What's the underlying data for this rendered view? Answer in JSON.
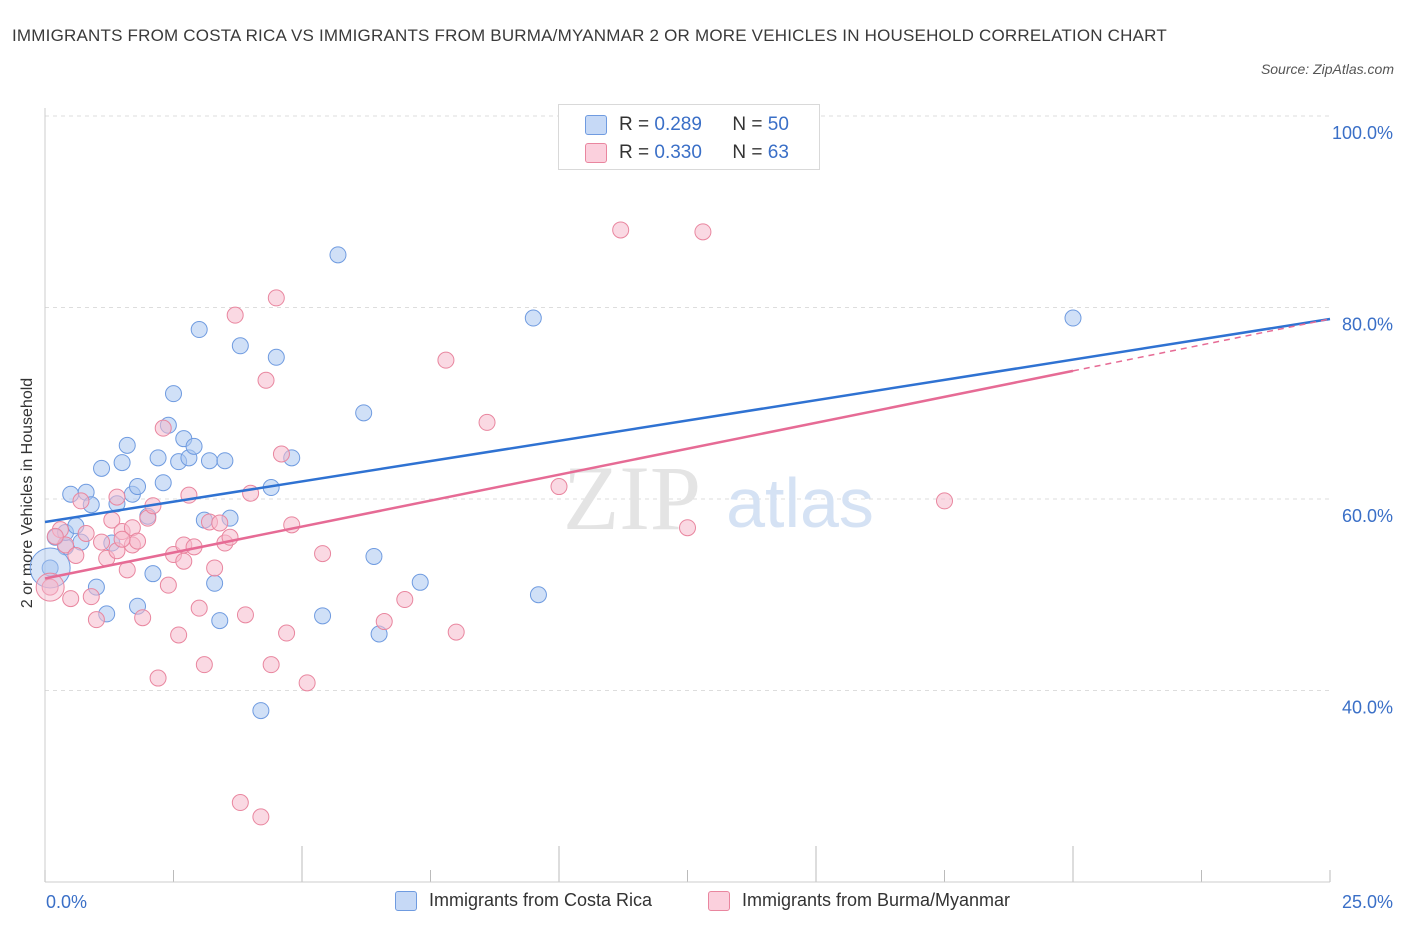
{
  "title": "IMMIGRANTS FROM COSTA RICA VS IMMIGRANTS FROM BURMA/MYANMAR 2 OR MORE VEHICLES IN HOUSEHOLD CORRELATION CHART",
  "source": "Source: ZipAtlas.com",
  "watermark": {
    "zip": "ZIP",
    "atlas": "atlas"
  },
  "legend_top": {
    "series1": {
      "r_label": "R =",
      "r_value": "0.289",
      "n_label": "N =",
      "n_value": "50"
    },
    "series2": {
      "r_label": "R =",
      "r_value": "0.330",
      "n_label": "N =",
      "n_value": "63"
    }
  },
  "colors": {
    "blue_fill": "#a9c6f0",
    "blue_stroke": "#6f9be0",
    "blue_line": "#2f72d2",
    "pink_fill": "#f6b9cc",
    "pink_stroke": "#e9869f",
    "pink_line": "#e66b95",
    "grid": "#dddddd",
    "tick_text": "#3a6fc7"
  },
  "chart_data": {
    "type": "scatter",
    "title": "IMMIGRANTS FROM COSTA RICA VS IMMIGRANTS FROM BURMA/MYANMAR 2 OR MORE VEHICLES IN HOUSEHOLD CORRELATION CHART",
    "xlabel": "",
    "ylabel": "2 or more Vehicles in Household",
    "xlim": [
      0,
      25
    ],
    "ylim": [
      20,
      100
    ],
    "x_tick_labels": [
      "0.0%",
      "25.0%"
    ],
    "y_ticks": [
      40,
      60,
      80,
      100
    ],
    "y_tick_labels": [
      "40.0%",
      "60.0%",
      "80.0%",
      "100.0%"
    ],
    "grid": true,
    "legend_position": "top-center",
    "series": [
      {
        "name": "Immigrants from Costa Rica",
        "color": "#a9c6f0",
        "trend": {
          "x": [
            0,
            25
          ],
          "y": [
            57.6,
            78.8
          ]
        },
        "points": [
          [
            0.1,
            52.8
          ],
          [
            0.2,
            56.0
          ],
          [
            0.4,
            55.0
          ],
          [
            0.4,
            56.5
          ],
          [
            0.5,
            60.5
          ],
          [
            0.6,
            57.2
          ],
          [
            0.7,
            55.5
          ],
          [
            0.8,
            60.7
          ],
          [
            0.9,
            59.4
          ],
          [
            1.0,
            50.8
          ],
          [
            1.1,
            63.2
          ],
          [
            1.2,
            48.0
          ],
          [
            1.3,
            55.4
          ],
          [
            1.4,
            59.5
          ],
          [
            1.5,
            63.8
          ],
          [
            1.6,
            65.6
          ],
          [
            1.7,
            60.5
          ],
          [
            1.8,
            61.3
          ],
          [
            1.8,
            48.8
          ],
          [
            2.0,
            58.2
          ],
          [
            2.1,
            52.2
          ],
          [
            2.2,
            64.3
          ],
          [
            2.3,
            61.7
          ],
          [
            2.4,
            67.7
          ],
          [
            2.5,
            71.0
          ],
          [
            2.6,
            63.9
          ],
          [
            2.7,
            66.3
          ],
          [
            2.8,
            64.3
          ],
          [
            2.9,
            65.5
          ],
          [
            3.0,
            77.7
          ],
          [
            3.1,
            57.8
          ],
          [
            3.2,
            64.0
          ],
          [
            3.3,
            51.2
          ],
          [
            3.4,
            47.3
          ],
          [
            3.5,
            64.0
          ],
          [
            3.6,
            58.0
          ],
          [
            3.8,
            76.0
          ],
          [
            4.2,
            37.9
          ],
          [
            4.4,
            61.2
          ],
          [
            4.5,
            74.8
          ],
          [
            4.8,
            64.3
          ],
          [
            5.4,
            47.8
          ],
          [
            5.7,
            85.5
          ],
          [
            6.2,
            69.0
          ],
          [
            6.4,
            54.0
          ],
          [
            6.5,
            45.9
          ],
          [
            7.3,
            51.3
          ],
          [
            9.5,
            78.9
          ],
          [
            9.6,
            50.0
          ],
          [
            20.0,
            78.9
          ]
        ]
      },
      {
        "name": "Immigrants from Burma/Myanmar",
        "color": "#f6b9cc",
        "trend": {
          "x": [
            0,
            25
          ],
          "y": [
            51.7,
            78.8
          ],
          "solid_until_x": 20
        },
        "points": [
          [
            0.1,
            50.8
          ],
          [
            0.3,
            56.8
          ],
          [
            0.4,
            55.2
          ],
          [
            0.5,
            49.6
          ],
          [
            0.6,
            54.1
          ],
          [
            0.7,
            59.8
          ],
          [
            0.8,
            56.4
          ],
          [
            0.9,
            49.8
          ],
          [
            1.0,
            47.4
          ],
          [
            1.1,
            55.5
          ],
          [
            1.2,
            53.8
          ],
          [
            1.3,
            57.8
          ],
          [
            1.4,
            60.2
          ],
          [
            1.4,
            54.6
          ],
          [
            1.5,
            56.6
          ],
          [
            1.6,
            52.6
          ],
          [
            1.7,
            55.2
          ],
          [
            1.7,
            57.0
          ],
          [
            1.8,
            55.6
          ],
          [
            1.9,
            47.6
          ],
          [
            2.0,
            58.0
          ],
          [
            2.1,
            59.3
          ],
          [
            2.2,
            41.3
          ],
          [
            2.3,
            67.4
          ],
          [
            2.4,
            51.0
          ],
          [
            2.5,
            54.2
          ],
          [
            2.6,
            45.8
          ],
          [
            2.7,
            55.2
          ],
          [
            2.7,
            53.5
          ],
          [
            2.8,
            60.4
          ],
          [
            2.9,
            55.0
          ],
          [
            3.0,
            48.6
          ],
          [
            3.1,
            42.7
          ],
          [
            3.2,
            57.6
          ],
          [
            3.3,
            52.8
          ],
          [
            3.4,
            57.5
          ],
          [
            3.5,
            55.4
          ],
          [
            3.6,
            56.0
          ],
          [
            3.7,
            79.2
          ],
          [
            3.8,
            28.3
          ],
          [
            3.9,
            47.9
          ],
          [
            4.0,
            60.6
          ],
          [
            4.2,
            26.8
          ],
          [
            4.3,
            72.4
          ],
          [
            4.4,
            42.7
          ],
          [
            4.5,
            81.0
          ],
          [
            4.6,
            64.7
          ],
          [
            4.7,
            46.0
          ],
          [
            4.8,
            57.3
          ],
          [
            5.1,
            40.8
          ],
          [
            5.4,
            54.3
          ],
          [
            6.6,
            47.2
          ],
          [
            7.0,
            49.5
          ],
          [
            7.8,
            74.5
          ],
          [
            8.0,
            46.1
          ],
          [
            8.6,
            68.0
          ],
          [
            10.0,
            61.3
          ],
          [
            11.2,
            88.1
          ],
          [
            12.5,
            57.0
          ],
          [
            12.8,
            87.9
          ],
          [
            17.5,
            59.8
          ],
          [
            0.2,
            56.1
          ],
          [
            1.5,
            55.8
          ]
        ]
      }
    ]
  },
  "legend_bottom": [
    {
      "label": "Immigrants from Costa Rica"
    },
    {
      "label": "Immigrants from Burma/Myanmar"
    }
  ]
}
